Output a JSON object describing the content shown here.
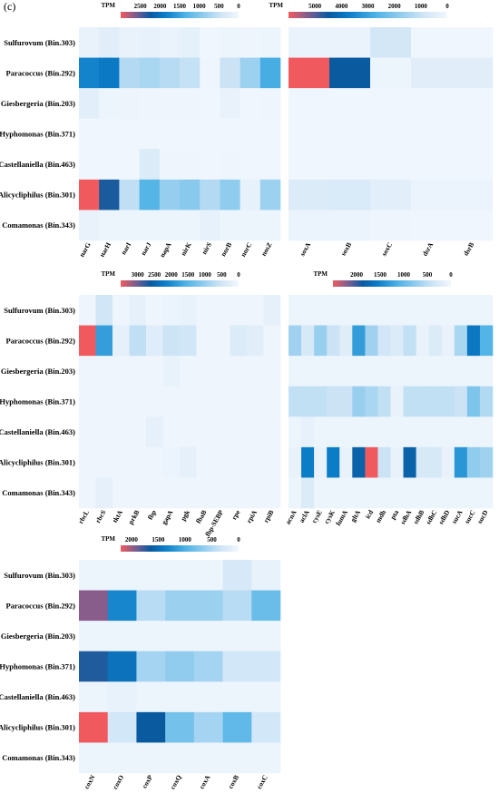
{
  "panel_label": "(c)",
  "colors": {
    "scale_low": "#f2f7fd",
    "scale_mid1": "#cfe5f6",
    "scale_mid2": "#4fb2e6",
    "scale_mid3": "#0b7dc7",
    "scale_mid4": "#0a5aa0",
    "scale_purple": "#7a5e92",
    "scale_high": "#f05a5e"
  },
  "chart_data": [
    {
      "type": "heatmap",
      "legend": {
        "title": "TPM",
        "ticks": [
          2500,
          2000,
          1500,
          1000,
          500,
          0
        ],
        "max": 3000
      },
      "rows": [
        "Sulfurovum (Bin.303)",
        "Paracoccus (Bin.292)",
        "Giesbergeria (Bin.203)",
        "Hyphomonas (Bin.371)",
        "Castellaniella (Bin.463)",
        "Alicycliphilus (Bin.301)",
        "Comamonas (Bin.343)"
      ],
      "columns": [
        "narG",
        "narH",
        "narI",
        "narJ",
        "napA",
        "nirK",
        "nirS",
        "norB",
        "norC",
        "nosZ"
      ],
      "values": [
        [
          120,
          220,
          120,
          150,
          100,
          180,
          30,
          80,
          40,
          60
        ],
        [
          1800,
          1900,
          650,
          720,
          620,
          520,
          40,
          480,
          800,
          1400
        ],
        [
          200,
          60,
          70,
          40,
          40,
          40,
          30,
          120,
          30,
          40
        ],
        [
          30,
          30,
          30,
          30,
          30,
          30,
          30,
          30,
          30,
          30
        ],
        [
          30,
          30,
          30,
          300,
          40,
          40,
          30,
          40,
          30,
          30
        ],
        [
          3000,
          2300,
          550,
          1300,
          850,
          950,
          650,
          900,
          150,
          800
        ],
        [
          120,
          60,
          60,
          60,
          60,
          60,
          150,
          60,
          60,
          60
        ]
      ]
    },
    {
      "type": "heatmap",
      "legend": {
        "title": "TPM",
        "ticks": [
          5000,
          4000,
          3000,
          2000,
          1000,
          0
        ],
        "max": 6000
      },
      "rows": [
        "Sulfurovum (Bin.303)",
        "Paracoccus (Bin.292)",
        "Giesbergeria (Bin.203)",
        "Hyphomonas (Bin.371)",
        "Castellaniella (Bin.463)",
        "Alicycliphilus (Bin.301)",
        "Comamonas (Bin.343)"
      ],
      "columns": [
        "soxA",
        "soxB",
        "soxC",
        "dsrA",
        "dsrB"
      ],
      "values": [
        [
          200,
          200,
          800,
          50,
          50
        ],
        [
          6000,
          4500,
          150,
          450,
          450
        ],
        [
          50,
          50,
          50,
          50,
          50
        ],
        [
          50,
          50,
          50,
          50,
          50
        ],
        [
          50,
          50,
          50,
          50,
          50
        ],
        [
          600,
          650,
          400,
          180,
          180
        ],
        [
          180,
          180,
          100,
          50,
          50
        ]
      ]
    },
    {
      "type": "heatmap",
      "legend": {
        "title": "TPM",
        "ticks": [
          3000,
          2500,
          2000,
          1500,
          1000,
          500,
          0
        ],
        "max": 3500
      },
      "rows": [
        "Sulfurovum (Bin.303)",
        "Paracoccus (Bin.292)",
        "Giesbergeria (Bin.203)",
        "Hyphomonas (Bin.371)",
        "Castellaniella (Bin.463)",
        "Alicycliphilus (Bin.301)",
        "Comamonas (Bin.343)"
      ],
      "columns": [
        "rbcL",
        "rbcS",
        "tktA",
        "prkB",
        "fbp",
        "gapA",
        "pgk",
        "fbaB",
        "fbp-SEBP",
        "rpe",
        "rpiA",
        "rpiB"
      ],
      "values": [
        [
          60,
          500,
          60,
          200,
          60,
          100,
          150,
          60,
          60,
          60,
          60,
          200
        ],
        [
          3500,
          1800,
          200,
          650,
          300,
          550,
          500,
          60,
          60,
          350,
          250,
          60
        ],
        [
          60,
          60,
          60,
          60,
          60,
          150,
          60,
          60,
          60,
          60,
          60,
          60
        ],
        [
          60,
          60,
          60,
          60,
          60,
          60,
          60,
          60,
          60,
          60,
          60,
          60
        ],
        [
          60,
          60,
          60,
          60,
          200,
          60,
          60,
          60,
          60,
          60,
          60,
          60
        ],
        [
          60,
          60,
          60,
          60,
          60,
          100,
          200,
          60,
          60,
          60,
          60,
          60
        ],
        [
          60,
          200,
          60,
          60,
          60,
          60,
          60,
          60,
          60,
          60,
          60,
          60
        ]
      ]
    },
    {
      "type": "heatmap",
      "legend": {
        "title": "TPM",
        "ticks": [
          2000,
          1500,
          1000,
          500,
          0
        ],
        "max": 2500
      },
      "rows": [
        "Sulfurovum (Bin.303)",
        "Paracoccus (Bin.292)",
        "Giesbergeria (Bin.203)",
        "Hyphomonas (Bin.371)",
        "Castellaniella (Bin.463)",
        "Alicycliphilus (Bin.301)",
        "Comamonas (Bin.343)"
      ],
      "columns": [
        "acnA",
        "aclA",
        "cysE",
        "cysK",
        "fumA",
        "gltA",
        "icd",
        "mdh",
        "pta",
        "sdhA",
        "sdhB",
        "sdhC",
        "sdhD",
        "sucA",
        "sucC",
        "sucD"
      ],
      "values": [
        [
          60,
          60,
          60,
          60,
          60,
          60,
          60,
          60,
          60,
          60,
          60,
          60,
          60,
          60,
          60,
          60
        ],
        [
          650,
          300,
          700,
          400,
          200,
          1300,
          650,
          350,
          250,
          450,
          100,
          250,
          100,
          600,
          1600,
          1100
        ],
        [
          60,
          60,
          60,
          60,
          60,
          60,
          60,
          60,
          60,
          60,
          60,
          60,
          60,
          60,
          60,
          60
        ],
        [
          450,
          450,
          450,
          400,
          400,
          700,
          600,
          450,
          100,
          450,
          450,
          450,
          450,
          400,
          850,
          550
        ],
        [
          60,
          120,
          60,
          60,
          60,
          60,
          60,
          60,
          60,
          60,
          60,
          60,
          60,
          60,
          60,
          60
        ],
        [
          100,
          1550,
          100,
          1550,
          100,
          1800,
          2500,
          400,
          100,
          1800,
          300,
          300,
          100,
          1350,
          750,
          650
        ],
        [
          60,
          250,
          60,
          60,
          60,
          60,
          60,
          60,
          60,
          60,
          60,
          60,
          60,
          60,
          60,
          60
        ]
      ]
    },
    {
      "type": "heatmap",
      "legend": {
        "title": "TPM",
        "ticks": [
          2000,
          1500,
          1000,
          500,
          0
        ],
        "max": 2200
      },
      "rows": [
        "Sulfurovum (Bin.303)",
        "Paracoccus (Bin.292)",
        "Giesbergeria (Bin.203)",
        "Hyphomonas (Bin.371)",
        "Castellaniella (Bin.463)",
        "Alicycliphilus (Bin.301)",
        "Comamonas (Bin.343)"
      ],
      "columns": [
        "coxN",
        "coxO",
        "coxP",
        "coxQ",
        "coxA",
        "coxB",
        "coxC"
      ],
      "values": [
        [
          60,
          60,
          60,
          60,
          60,
          250,
          100
        ],
        [
          1950,
          1300,
          450,
          600,
          600,
          450,
          850
        ],
        [
          60,
          60,
          60,
          60,
          60,
          60,
          60
        ],
        [
          1700,
          1450,
          550,
          650,
          550,
          300,
          300
        ],
        [
          60,
          100,
          60,
          60,
          60,
          60,
          60
        ],
        [
          2200,
          300,
          1650,
          800,
          550,
          900,
          300
        ],
        [
          60,
          60,
          60,
          60,
          60,
          60,
          60
        ]
      ]
    }
  ]
}
